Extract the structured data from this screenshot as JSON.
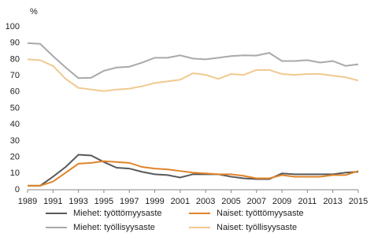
{
  "chart_data": {
    "type": "line",
    "y_label": "%",
    "x": [
      1989,
      1990,
      1991,
      1992,
      1993,
      1994,
      1995,
      1996,
      1997,
      1998,
      1999,
      2000,
      2001,
      2002,
      2003,
      2004,
      2005,
      2006,
      2007,
      2008,
      2009,
      2010,
      2011,
      2012,
      2013,
      2014,
      2015
    ],
    "xlim": [
      1989,
      2015
    ],
    "xticks": [
      1989,
      1991,
      1993,
      1995,
      1997,
      1999,
      2001,
      2003,
      2005,
      2007,
      2009,
      2011,
      2013,
      2015
    ],
    "ylim": [
      0,
      100
    ],
    "yticks": [
      0,
      10,
      20,
      30,
      40,
      50,
      60,
      70,
      80,
      90,
      100
    ],
    "grid": false,
    "series": [
      {
        "name": "Miehet: työttömyysaste",
        "color": "#58595b",
        "values": [
          2.5,
          2.5,
          8,
          14,
          21.5,
          21,
          17,
          13.5,
          13,
          11,
          9.5,
          9,
          7.5,
          9.5,
          9.5,
          9.5,
          8,
          7,
          6.5,
          6.5,
          10,
          9.5,
          9.5,
          9.5,
          9.5,
          10.5,
          11
        ]
      },
      {
        "name": "Naiset: työttömyysaste",
        "color": "#e0842a",
        "values": [
          2.5,
          2.5,
          5,
          10.5,
          16,
          16.5,
          17.5,
          17,
          16.5,
          14,
          13,
          12.5,
          11.5,
          10.5,
          10,
          9.5,
          9.5,
          8.5,
          7,
          7,
          9,
          8,
          8,
          8,
          9,
          9,
          11.5
        ]
      },
      {
        "name": "Miehet: työllisyysaste",
        "color": "#a7a9ac",
        "values": [
          90,
          89.5,
          82,
          75,
          68.5,
          68.7,
          73,
          75,
          75.5,
          78,
          81,
          81,
          82.5,
          80.5,
          80,
          81,
          82,
          82.5,
          82.3,
          84,
          79,
          79,
          79.5,
          78,
          79,
          76,
          77
        ]
      },
      {
        "name": "Naiset: työllisyysaste",
        "color": "#f0c98f",
        "values": [
          80,
          79.5,
          76,
          68,
          62.5,
          61.5,
          60.5,
          61.5,
          62,
          63.5,
          65.5,
          66.5,
          67.5,
          71.5,
          70.5,
          68,
          71,
          70.5,
          73.5,
          73.5,
          71,
          70.5,
          71,
          71,
          70,
          69,
          67
        ]
      }
    ]
  }
}
